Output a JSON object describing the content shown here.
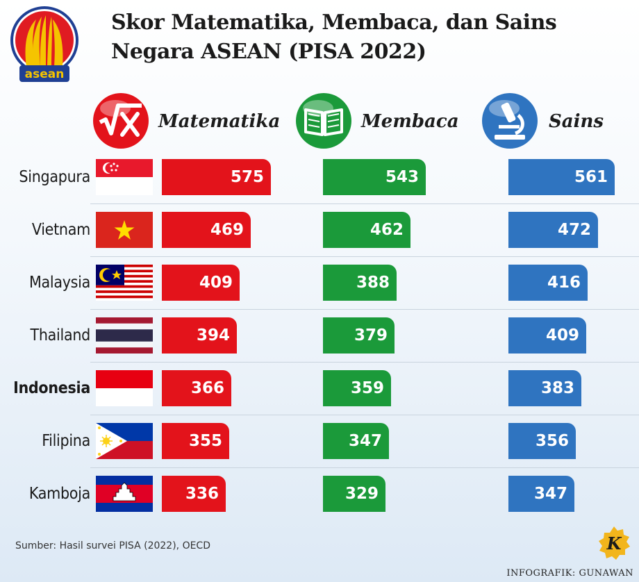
{
  "title_line1": "Skor Matematika, Membaca, dan Sains",
  "title_line2": "Negara ASEAN (PISA 2022)",
  "logo_text": "asean",
  "columns": {
    "math": {
      "label": "Matematika",
      "icon": "square-root-x-icon",
      "color": "#e3131b"
    },
    "reading": {
      "label": "Membaca",
      "icon": "open-book-icon",
      "color": "#1b9a3a"
    },
    "science": {
      "label": "Sains",
      "icon": "microscope-icon",
      "color": "#2f74c0"
    }
  },
  "chart_data": {
    "type": "bar",
    "title": "Skor Matematika, Membaca, dan Sains Negara ASEAN (PISA 2022)",
    "categories": [
      "Singapura",
      "Vietnam",
      "Malaysia",
      "Thailand",
      "Indonesia",
      "Filipina",
      "Kamboja"
    ],
    "highlighted_category": "Indonesia",
    "series": [
      {
        "name": "Matematika",
        "values": [
          575,
          469,
          409,
          394,
          366,
          355,
          336
        ]
      },
      {
        "name": "Membaca",
        "values": [
          543,
          462,
          388,
          379,
          359,
          347,
          329
        ]
      },
      {
        "name": "Sains",
        "values": [
          561,
          472,
          416,
          409,
          383,
          356,
          347
        ]
      }
    ]
  },
  "flags": [
    "singapore-flag",
    "vietnam-flag",
    "malaysia-flag",
    "thailand-flag",
    "indonesia-flag",
    "philippines-flag",
    "cambodia-flag"
  ],
  "source": "Sumber: Hasil survei PISA (2022), OECD",
  "credit": "INFOGRAFIK: GUNAWAN",
  "brand_letter": "K"
}
